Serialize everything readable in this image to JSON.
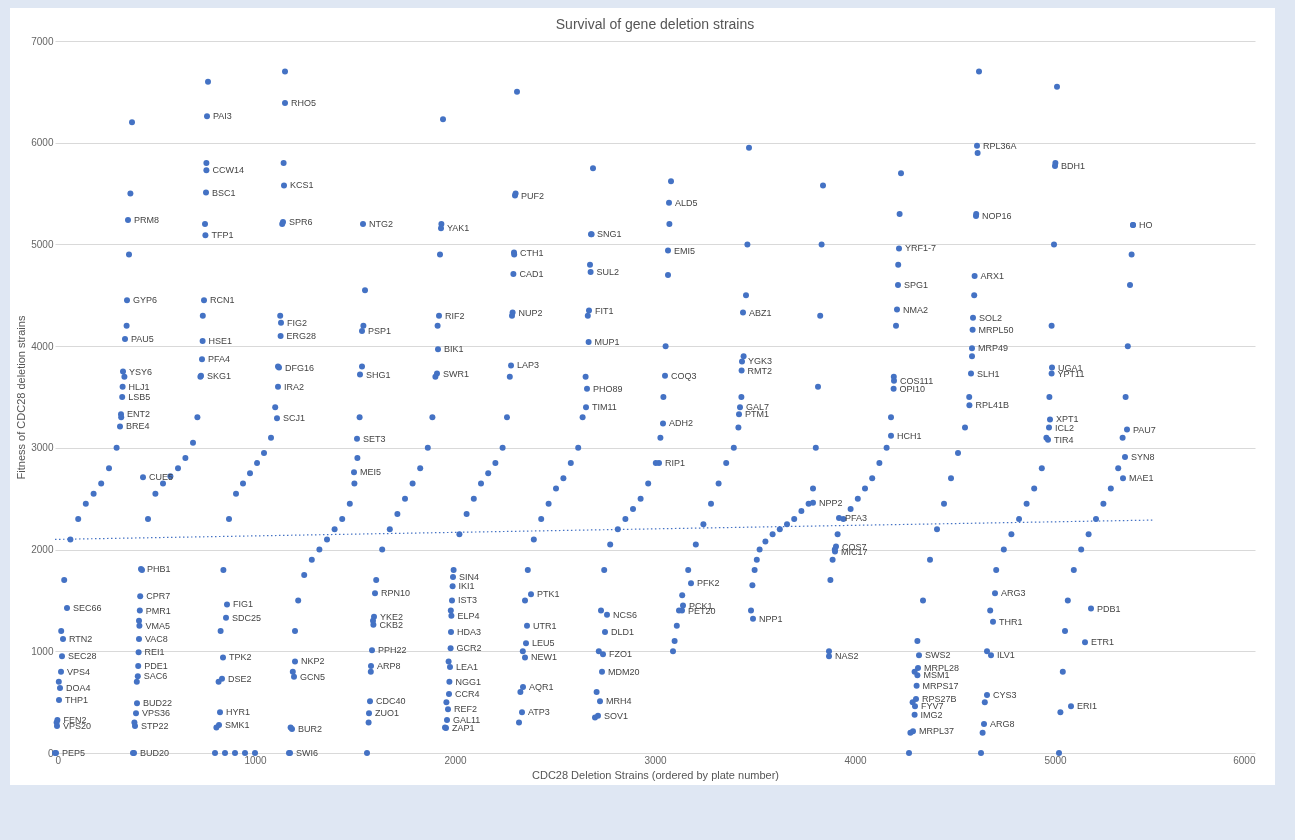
{
  "chart_data": {
    "type": "scatter",
    "title": "Survival of gene deletion strains",
    "xlabel": "CDC28 Deletion Strains (ordered by plate number)",
    "ylabel": "Fitness of CDC28 deletion strains",
    "xlim": [
      0,
      6000
    ],
    "xticks": [
      0,
      1000,
      2000,
      3000,
      4000,
      5000,
      6000
    ],
    "ylim": [
      0,
      7000
    ],
    "yticks": [
      0,
      1000,
      2000,
      3000,
      4000,
      5000,
      6000,
      7000
    ],
    "grid": "y",
    "marker": "circle",
    "series": [
      {
        "color": "#4472c4",
        "x": [
          365,
          360,
          350,
          340,
          338,
          336,
          330,
          325,
          60,
          40,
          35,
          30,
          25,
          20,
          12,
          10,
          5,
          760,
          757,
          755,
          752,
          745,
          738,
          735,
          730,
          440,
          430,
          426,
          424,
          422,
          420,
          418,
          416,
          414,
          410,
          405,
          400,
          395,
          1150,
          1145,
          1140,
          1130,
          1128,
          1120,
          1115,
          1110,
          860,
          855,
          840,
          835,
          825,
          820,
          1540,
          1535,
          1525,
          1510,
          1495,
          1200,
          1195,
          1185,
          1175,
          1930,
          1920,
          1915,
          1910,
          1600,
          1595,
          1592,
          1585,
          1580,
          1575,
          1570,
          2300,
          2295,
          2292,
          2288,
          2280,
          1990,
          1988,
          1985,
          1982,
          1980,
          1978,
          1975,
          1972,
          1970,
          1965,
          1960,
          1955,
          2680,
          2678,
          2670,
          2668,
          2660,
          2655,
          2380,
          2360,
          2355,
          2350,
          2340,
          2335,
          3070,
          3065,
          3050,
          3040,
          3020,
          2760,
          2750,
          2740,
          2735,
          2725,
          2715,
          3440,
          3435,
          3433,
          3425,
          3420,
          3180,
          3140,
          3135,
          3790,
          3490,
          3870,
          4220,
          4215,
          4210,
          4195,
          4193,
          4180,
          3920,
          3905,
          3900,
          4610,
          4605,
          4598,
          4590,
          4588,
          4585,
          4580,
          4572,
          4320,
          4315,
          4312,
          4308,
          4305,
          4300,
          4298,
          4290,
          5000,
          4985,
          4983,
          4975,
          4970,
          4965,
          4700,
          4690,
          4680,
          4660,
          4645,
          5080,
          5390,
          5360,
          5350,
          5340,
          5180,
          5150
        ],
        "values": [
          5240,
          4450,
          4070,
          3750,
          3600,
          3500,
          3330,
          3210,
          1425,
          1120,
          950,
          800,
          640,
          520,
          325,
          265,
          0,
          6260,
          5730,
          5510,
          5090,
          4450,
          4050,
          3870,
          3710,
          2710,
          1810,
          1540,
          1400,
          1250,
          1120,
          990,
          855,
          755,
          490,
          390,
          265,
          0,
          6390,
          5580,
          5220,
          4230,
          4100,
          3790,
          3600,
          3290,
          1460,
          1330,
          940,
          730,
          400,
          275,
          5200,
          4150,
          3720,
          3090,
          2760,
          900,
          750,
          235,
          0,
          5160,
          4300,
          3970,
          3730,
          1570,
          1340,
          1260,
          1010,
          855,
          510,
          390,
          5480,
          4920,
          4710,
          4330,
          3810,
          1730,
          1640,
          1500,
          1350,
          1190,
          1030,
          845,
          700,
          580,
          430,
          325,
          245,
          5100,
          4730,
          4350,
          4040,
          3580,
          3400,
          1560,
          1250,
          1080,
          940,
          650,
          400,
          5410,
          4940,
          3710,
          3240,
          2850,
          1360,
          1190,
          970,
          800,
          510,
          365,
          4330,
          3850,
          3760,
          3400,
          3330,
          1670,
          1450,
          1400,
          2460,
          1320,
          950,
          4960,
          4600,
          4360,
          3660,
          3580,
          3120,
          2310,
          2030,
          1980,
          5970,
          5280,
          4690,
          4280,
          4160,
          3980,
          3730,
          3420,
          960,
          835,
          765,
          660,
          530,
          460,
          375,
          215,
          5770,
          3790,
          3730,
          3280,
          3200,
          3080,
          1570,
          1290,
          960,
          570,
          285,
          460,
          5190,
          3180,
          2910,
          2700,
          1420,
          1090
        ]
      },
      {
        "color": "#4472c4",
        "x": [
          0,
          8,
          19,
          31,
          46,
          77,
          116,
          154,
          193,
          231,
          270,
          308,
          331,
          347,
          358,
          370,
          377,
          385,
          390,
          397,
          409,
          420,
          435,
          465,
          502,
          540,
          577,
          615,
          652,
          690,
          712,
          727,
          739,
          750,
          757,
          765,
          800,
          807,
          818,
          828,
          842,
          870,
          905,
          940,
          975,
          1010,
          1045,
          1080,
          1101,
          1115,
          1126,
          1136,
          1143,
          1150,
          850,
          900,
          950,
          1000,
          1170,
          1178,
          1189,
          1200,
          1216,
          1246,
          1284,
          1322,
          1360,
          1398,
          1436,
          1474,
          1497,
          1512,
          1523,
          1535,
          1542,
          1550,
          1560,
          1568,
          1579,
          1590,
          1606,
          1636,
          1674,
          1712,
          1750,
          1788,
          1826,
          1864,
          1887,
          1902,
          1913,
          1925,
          1932,
          1940,
          1950,
          1957,
          1968,
          1979,
          1993,
          2022,
          2058,
          2094,
          2130,
          2166,
          2202,
          2238,
          2260,
          2274,
          2285,
          2296,
          2303,
          2310,
          2320,
          2327,
          2339,
          2350,
          2364,
          2394,
          2431,
          2468,
          2505,
          2542,
          2579,
          2616,
          2638,
          2653,
          2664,
          2675,
          2683,
          2690,
          2700,
          2708,
          2719,
          2730,
          2746,
          2776,
          2814,
          2852,
          2890,
          2928,
          2966,
          3004,
          3027,
          3042,
          3053,
          3065,
          3072,
          3080,
          3090,
          3098,
          3109,
          3120,
          3136,
          3166,
          3204,
          3242,
          3280,
          3318,
          3356,
          3394,
          3417,
          3432,
          3443,
          3455,
          3462,
          3470,
          3480,
          3487,
          3498,
          3509,
          3523,
          3552,
          3588,
          3624,
          3660,
          3696,
          3732,
          3768,
          3790,
          3804,
          3815,
          3826,
          3833,
          3840,
          3870,
          3877,
          3888,
          3899,
          3913,
          3942,
          3978,
          4014,
          4050,
          4086,
          4122,
          4158,
          4180,
          4194,
          4205,
          4216,
          4223,
          4230,
          4270,
          4277,
          4288,
          4298,
          4312,
          4340,
          4375,
          4410,
          4445,
          4480,
          4515,
          4550,
          4571,
          4585,
          4596,
          4606,
          4613,
          4620,
          4630,
          4638,
          4649,
          4660,
          4676,
          4706,
          4744,
          4782,
          4820,
          4858,
          4896,
          4934,
          4957,
          4972,
          4983,
          4995,
          5002,
          5010,
          5020,
          5027,
          5039,
          5050,
          5064,
          5094,
          5131,
          5168,
          5205,
          5242,
          5279,
          5316,
          5338,
          5353,
          5364,
          5375,
          5383,
          5390
        ],
        "values": [
          0,
          300,
          700,
          1200,
          1700,
          2100,
          2300,
          2450,
          2550,
          2650,
          2800,
          3000,
          3300,
          3700,
          4200,
          4900,
          5500,
          6200,
          0,
          300,
          700,
          1300,
          1800,
          2300,
          2550,
          2650,
          2720,
          2800,
          2900,
          3050,
          3300,
          3700,
          4300,
          5200,
          5800,
          6600,
          0,
          250,
          700,
          1200,
          1800,
          2300,
          2550,
          2650,
          2750,
          2850,
          2950,
          3100,
          3400,
          3800,
          4300,
          5200,
          5800,
          6700,
          0,
          0,
          0,
          0,
          0,
          250,
          800,
          1200,
          1500,
          1750,
          1900,
          2000,
          2100,
          2200,
          2300,
          2450,
          2650,
          2900,
          3300,
          3800,
          4200,
          4550,
          0,
          300,
          800,
          1300,
          1700,
          2000,
          2200,
          2350,
          2500,
          2650,
          2800,
          3000,
          3300,
          3700,
          4200,
          4900,
          5200,
          6230,
          250,
          500,
          900,
          1400,
          1800,
          2150,
          2350,
          2500,
          2650,
          2750,
          2850,
          3000,
          3300,
          3700,
          4300,
          4900,
          5500,
          6500,
          300,
          600,
          1000,
          1500,
          1800,
          2100,
          2300,
          2450,
          2600,
          2700,
          2850,
          3000,
          3300,
          3700,
          4300,
          4800,
          5100,
          5750,
          350,
          600,
          1000,
          1400,
          1800,
          2050,
          2200,
          2300,
          2400,
          2500,
          2650,
          2850,
          3100,
          3500,
          4000,
          4700,
          5200,
          5620,
          1000,
          1100,
          1250,
          1400,
          1550,
          1800,
          2050,
          2250,
          2450,
          2650,
          2850,
          3000,
          3200,
          3500,
          3900,
          4500,
          5000,
          5950,
          1400,
          1650,
          1800,
          1900,
          2000,
          2080,
          2150,
          2200,
          2250,
          2300,
          2380,
          2450,
          2600,
          3000,
          3600,
          4300,
          5000,
          5580,
          1000,
          1700,
          1900,
          2000,
          2150,
          2300,
          2400,
          2500,
          2600,
          2700,
          2850,
          3000,
          3300,
          3700,
          4200,
          4800,
          5300,
          5700,
          0,
          200,
          500,
          800,
          1100,
          1500,
          1900,
          2200,
          2450,
          2700,
          2950,
          3200,
          3500,
          3900,
          4500,
          5300,
          5900,
          6700,
          0,
          200,
          500,
          1000,
          1400,
          1800,
          2000,
          2150,
          2300,
          2450,
          2600,
          2800,
          3100,
          3500,
          4200,
          5000,
          5800,
          6550,
          0,
          400,
          800,
          1200,
          1500,
          1800,
          2000,
          2150,
          2300,
          2450,
          2600,
          2800,
          3100,
          3500,
          4000,
          4600,
          4900,
          5190
        ]
      },
      {
        "type": "line",
        "color": "#4472c4",
        "line_style": "dotted",
        "marker": "none",
        "x": [
          0,
          5490
        ],
        "values": [
          2100,
          2290
        ]
      }
    ],
    "annotations": [
      {
        "text": "PRM8",
        "x": 365,
        "y": 5240
      },
      {
        "text": "GYP6",
        "x": 360,
        "y": 4450
      },
      {
        "text": "PAU5",
        "x": 350,
        "y": 4070
      },
      {
        "text": "YSY6",
        "x": 340,
        "y": 3750
      },
      {
        "text": "HLJ1",
        "x": 338,
        "y": 3600
      },
      {
        "text": "LSB5",
        "x": 336,
        "y": 3500
      },
      {
        "text": "ENT2",
        "x": 330,
        "y": 3330
      },
      {
        "text": "BRE4",
        "x": 325,
        "y": 3210
      },
      {
        "text": "SEC66",
        "x": 60,
        "y": 1425
      },
      {
        "text": "RTN2",
        "x": 40,
        "y": 1120
      },
      {
        "text": "SEC28",
        "x": 35,
        "y": 950
      },
      {
        "text": "VPS4",
        "x": 30,
        "y": 800
      },
      {
        "text": "DOA4",
        "x": 25,
        "y": 640
      },
      {
        "text": "THP1",
        "x": 20,
        "y": 520
      },
      {
        "text": "FEN2",
        "x": 12,
        "y": 325
      },
      {
        "text": "VPS20",
        "x": 10,
        "y": 265
      },
      {
        "text": "PEP5",
        "x": 5,
        "y": 0
      },
      {
        "text": "PAI3",
        "x": 760,
        "y": 6260
      },
      {
        "text": "CCW14",
        "x": 757,
        "y": 5730
      },
      {
        "text": "BSC1",
        "x": 755,
        "y": 5510
      },
      {
        "text": "TFP1",
        "x": 752,
        "y": 5090
      },
      {
        "text": "RCN1",
        "x": 745,
        "y": 4450
      },
      {
        "text": "HSE1",
        "x": 738,
        "y": 4050
      },
      {
        "text": "PFA4",
        "x": 735,
        "y": 3870
      },
      {
        "text": "SKG1",
        "x": 730,
        "y": 3710
      },
      {
        "text": "CUE5",
        "x": 440,
        "y": 2710
      },
      {
        "text": "PHB1",
        "x": 430,
        "y": 1810
      },
      {
        "text": "CPR7",
        "x": 426,
        "y": 1540
      },
      {
        "text": "PMR1",
        "x": 424,
        "y": 1400
      },
      {
        "text": "VMA5",
        "x": 422,
        "y": 1250
      },
      {
        "text": "VAC8",
        "x": 420,
        "y": 1120
      },
      {
        "text": "REI1",
        "x": 418,
        "y": 990
      },
      {
        "text": "PDE1",
        "x": 416,
        "y": 855
      },
      {
        "text": "SAC6",
        "x": 414,
        "y": 755
      },
      {
        "text": "BUD22",
        "x": 410,
        "y": 490
      },
      {
        "text": "VPS36",
        "x": 405,
        "y": 390
      },
      {
        "text": "STP22",
        "x": 400,
        "y": 265
      },
      {
        "text": "BUD20",
        "x": 395,
        "y": 0
      },
      {
        "text": "RHO5",
        "x": 1150,
        "y": 6390
      },
      {
        "text": "KCS1",
        "x": 1145,
        "y": 5580
      },
      {
        "text": "SPR6",
        "x": 1140,
        "y": 5220
      },
      {
        "text": "FIG2",
        "x": 1130,
        "y": 4230
      },
      {
        "text": "ERG28",
        "x": 1128,
        "y": 4100
      },
      {
        "text": "DFG16",
        "x": 1120,
        "y": 3790
      },
      {
        "text": "IRA2",
        "x": 1115,
        "y": 3600
      },
      {
        "text": "SCJ1",
        "x": 1110,
        "y": 3290
      },
      {
        "text": "FIG1",
        "x": 860,
        "y": 1460
      },
      {
        "text": "SDC25",
        "x": 855,
        "y": 1330
      },
      {
        "text": "TPK2",
        "x": 840,
        "y": 940
      },
      {
        "text": "DSE2",
        "x": 835,
        "y": 730
      },
      {
        "text": "HYR1",
        "x": 825,
        "y": 400
      },
      {
        "text": "SMK1",
        "x": 820,
        "y": 275
      },
      {
        "text": "NTG2",
        "x": 1540,
        "y": 5200
      },
      {
        "text": "PSP1",
        "x": 1535,
        "y": 4150
      },
      {
        "text": "SHG1",
        "x": 1525,
        "y": 3720
      },
      {
        "text": "SET3",
        "x": 1510,
        "y": 3090
      },
      {
        "text": "MEI5",
        "x": 1495,
        "y": 2760
      },
      {
        "text": "NKP2",
        "x": 1200,
        "y": 900
      },
      {
        "text": "GCN5",
        "x": 1195,
        "y": 750
      },
      {
        "text": "BUR2",
        "x": 1185,
        "y": 235
      },
      {
        "text": "SWI6",
        "x": 1175,
        "y": 0
      },
      {
        "text": "YAK1",
        "x": 1930,
        "y": 5160
      },
      {
        "text": "RIF2",
        "x": 1920,
        "y": 4300
      },
      {
        "text": "BIK1",
        "x": 1915,
        "y": 3970
      },
      {
        "text": "SWR1",
        "x": 1910,
        "y": 3730
      },
      {
        "text": "RPN10",
        "x": 1600,
        "y": 1570
      },
      {
        "text": "YKE2",
        "x": 1595,
        "y": 1340
      },
      {
        "text": "CKB2",
        "x": 1592,
        "y": 1260
      },
      {
        "text": "PPH22",
        "x": 1585,
        "y": 1010
      },
      {
        "text": "ARP8",
        "x": 1580,
        "y": 855
      },
      {
        "text": "CDC40",
        "x": 1575,
        "y": 510
      },
      {
        "text": "ZUO1",
        "x": 1570,
        "y": 390
      },
      {
        "text": "PUF2",
        "x": 2300,
        "y": 5480
      },
      {
        "text": "CTH1",
        "x": 2295,
        "y": 4920
      },
      {
        "text": "CAD1",
        "x": 2292,
        "y": 4710
      },
      {
        "text": "NUP2",
        "x": 2288,
        "y": 4330
      },
      {
        "text": "LAP3",
        "x": 2280,
        "y": 3810
      },
      {
        "text": "SIN4",
        "x": 1990,
        "y": 1730
      },
      {
        "text": "IKI1",
        "x": 1988,
        "y": 1640
      },
      {
        "text": "IST3",
        "x": 1985,
        "y": 1500
      },
      {
        "text": "ELP4",
        "x": 1982,
        "y": 1350
      },
      {
        "text": "HDA3",
        "x": 1980,
        "y": 1190
      },
      {
        "text": "GCR2",
        "x": 1978,
        "y": 1030
      },
      {
        "text": "LEA1",
        "x": 1975,
        "y": 845
      },
      {
        "text": "NGG1",
        "x": 1972,
        "y": 700
      },
      {
        "text": "CCR4",
        "x": 1970,
        "y": 580
      },
      {
        "text": "REF2",
        "x": 1965,
        "y": 430
      },
      {
        "text": "GAL11",
        "x": 1960,
        "y": 325
      },
      {
        "text": "ZAP1",
        "x": 1955,
        "y": 245
      },
      {
        "text": "SNG1",
        "x": 2680,
        "y": 5100
      },
      {
        "text": "SUL2",
        "x": 2678,
        "y": 4730
      },
      {
        "text": "FIT1",
        "x": 2670,
        "y": 4350
      },
      {
        "text": "MUP1",
        "x": 2668,
        "y": 4040
      },
      {
        "text": "PHO89",
        "x": 2660,
        "y": 3580
      },
      {
        "text": "TIM11",
        "x": 2655,
        "y": 3400
      },
      {
        "text": "PTK1",
        "x": 2380,
        "y": 1560
      },
      {
        "text": "UTR1",
        "x": 2360,
        "y": 1250
      },
      {
        "text": "LEU5",
        "x": 2355,
        "y": 1080
      },
      {
        "text": "NEW1",
        "x": 2350,
        "y": 940
      },
      {
        "text": "AQR1",
        "x": 2340,
        "y": 650
      },
      {
        "text": "ATP3",
        "x": 2335,
        "y": 400
      },
      {
        "text": "ALD5",
        "x": 3070,
        "y": 5410
      },
      {
        "text": "EMI5",
        "x": 3065,
        "y": 4940
      },
      {
        "text": "COQ3",
        "x": 3050,
        "y": 3710
      },
      {
        "text": "ADH2",
        "x": 3040,
        "y": 3240
      },
      {
        "text": "RIP1",
        "x": 3020,
        "y": 2850
      },
      {
        "text": "NCS6",
        "x": 2760,
        "y": 1360
      },
      {
        "text": "DLD1",
        "x": 2750,
        "y": 1190
      },
      {
        "text": "FZO1",
        "x": 2740,
        "y": 970
      },
      {
        "text": "MDM20",
        "x": 2735,
        "y": 800
      },
      {
        "text": "MRH4",
        "x": 2725,
        "y": 510
      },
      {
        "text": "SOV1",
        "x": 2715,
        "y": 365
      },
      {
        "text": "ABZ1",
        "x": 3440,
        "y": 4330
      },
      {
        "text": "YGK3",
        "x": 3435,
        "y": 3850
      },
      {
        "text": "RMT2",
        "x": 3433,
        "y": 3760
      },
      {
        "text": "GAL7",
        "x": 3425,
        "y": 3400
      },
      {
        "text": "PTM1",
        "x": 3420,
        "y": 3330
      },
      {
        "text": "PFK2",
        "x": 3180,
        "y": 1670
      },
      {
        "text": "PCK1",
        "x": 3140,
        "y": 1450
      },
      {
        "text": "PET20",
        "x": 3135,
        "y": 1400
      },
      {
        "text": "NPP2",
        "x": 3790,
        "y": 2460
      },
      {
        "text": "NPP1",
        "x": 3490,
        "y": 1320
      },
      {
        "text": "NAS2",
        "x": 3870,
        "y": 950
      },
      {
        "text": "YRF1-7",
        "x": 4220,
        "y": 4960
      },
      {
        "text": "SPG1",
        "x": 4215,
        "y": 4600
      },
      {
        "text": "NMA2",
        "x": 4210,
        "y": 4360
      },
      {
        "text": "COS111",
        "x": 4195,
        "y": 3660
      },
      {
        "text": "OPI10",
        "x": 4193,
        "y": 3580
      },
      {
        "text": "HCH1",
        "x": 4180,
        "y": 3120
      },
      {
        "text": "PFA3",
        "x": 3920,
        "y": 2310
      },
      {
        "text": "COS7",
        "x": 3905,
        "y": 2030
      },
      {
        "text": "MIC17",
        "x": 3900,
        "y": 1980
      },
      {
        "text": "RPL36A",
        "x": 4610,
        "y": 5970
      },
      {
        "text": "NOP16",
        "x": 4605,
        "y": 5280
      },
      {
        "text": "ARX1",
        "x": 4598,
        "y": 4690
      },
      {
        "text": "SOL2",
        "x": 4590,
        "y": 4280
      },
      {
        "text": "MRPL50",
        "x": 4588,
        "y": 4160
      },
      {
        "text": "MRP49",
        "x": 4585,
        "y": 3980
      },
      {
        "text": "SLH1",
        "x": 4580,
        "y": 3730
      },
      {
        "text": "RPL41B",
        "x": 4572,
        "y": 3420
      },
      {
        "text": "SWS2",
        "x": 4320,
        "y": 960
      },
      {
        "text": "MRPL28",
        "x": 4315,
        "y": 835
      },
      {
        "text": "MSM1",
        "x": 4312,
        "y": 765
      },
      {
        "text": "MRPS17",
        "x": 4308,
        "y": 660
      },
      {
        "text": "RPS27B",
        "x": 4305,
        "y": 530
      },
      {
        "text": "FYV7",
        "x": 4300,
        "y": 460
      },
      {
        "text": "IMG2",
        "x": 4298,
        "y": 375
      },
      {
        "text": "MRPL37",
        "x": 4290,
        "y": 215
      },
      {
        "text": "BDH1",
        "x": 5000,
        "y": 5770
      },
      {
        "text": "UGA1",
        "x": 4985,
        "y": 3790
      },
      {
        "text": "YPT11",
        "x": 4983,
        "y": 3730
      },
      {
        "text": "XPT1",
        "x": 4975,
        "y": 3280
      },
      {
        "text": "ICL2",
        "x": 4970,
        "y": 3200
      },
      {
        "text": "TIR4",
        "x": 4965,
        "y": 3080
      },
      {
        "text": "ARG3",
        "x": 4700,
        "y": 1570
      },
      {
        "text": "THR1",
        "x": 4690,
        "y": 1290
      },
      {
        "text": "ILV1",
        "x": 4680,
        "y": 960
      },
      {
        "text": "CYS3",
        "x": 4660,
        "y": 570
      },
      {
        "text": "ARG8",
        "x": 4645,
        "y": 285
      },
      {
        "text": "ERI1",
        "x": 5080,
        "y": 460
      },
      {
        "text": "HO",
        "x": 5390,
        "y": 5190
      },
      {
        "text": "PAU7",
        "x": 5360,
        "y": 3180
      },
      {
        "text": "SYN8",
        "x": 5350,
        "y": 2910
      },
      {
        "text": "MAE1",
        "x": 5340,
        "y": 2700
      },
      {
        "text": "PDB1",
        "x": 5180,
        "y": 1420
      },
      {
        "text": "ETR1",
        "x": 5150,
        "y": 1090
      }
    ]
  }
}
